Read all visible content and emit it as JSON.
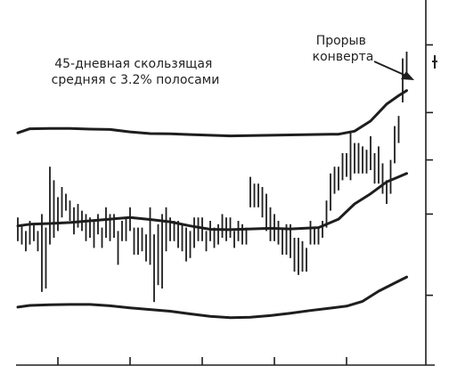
{
  "chart_data": {
    "type": "line",
    "title": "",
    "xlabel": "",
    "ylabel": "",
    "grid": false,
    "legend": "none",
    "colors": {
      "ink": "#1e1e1e",
      "background": "#ffffff"
    },
    "annotations": [
      {
        "name": "indicator-label",
        "lines": [
          "45-дневная скользящая",
          "средняя с 3.2% полосами"
        ]
      },
      {
        "name": "breakout-label",
        "lines": [
          "Прорыв",
          "конверта"
        ]
      }
    ],
    "x_range": [
      0,
      100
    ],
    "y_range": [
      0,
      100
    ],
    "series": [
      {
        "id": "upper-band",
        "x": [
          0,
          3,
          8,
          13,
          18,
          23,
          28,
          33,
          38,
          43,
          48,
          53,
          58,
          63,
          68,
          73,
          78,
          80,
          84,
          88,
          92,
          95,
          97
        ],
        "y": [
          66.0,
          67.2,
          67.3,
          67.3,
          67.1,
          67.0,
          66.3,
          65.8,
          65.7,
          65.5,
          65.3,
          65.1,
          65.2,
          65.3,
          65.4,
          65.5,
          65.6,
          65.6,
          66.5,
          69.5,
          74.5,
          77.0,
          78.5
        ]
      },
      {
        "id": "moving-average",
        "x": [
          0,
          3,
          8,
          13,
          18,
          23,
          28,
          33,
          38,
          43,
          48,
          53,
          58,
          63,
          68,
          73,
          75,
          80,
          84,
          88,
          92,
          95,
          97
        ],
        "y": [
          38.5,
          39.0,
          39.2,
          39.5,
          40.0,
          40.5,
          41.0,
          40.4,
          39.7,
          38.5,
          37.5,
          37.4,
          37.6,
          37.8,
          37.6,
          37.9,
          38.0,
          40.5,
          45.0,
          48.0,
          51.5,
          53.0,
          54.0
        ]
      },
      {
        "id": "lower-band",
        "x": [
          0,
          3,
          8,
          13,
          18,
          23,
          28,
          33,
          38,
          43,
          48,
          53,
          58,
          63,
          68,
          73,
          78,
          82,
          86,
          90,
          94,
          97
        ],
        "y": [
          14.5,
          15.0,
          15.2,
          15.3,
          15.3,
          14.9,
          14.3,
          13.8,
          13.3,
          12.5,
          11.8,
          11.4,
          11.5,
          12.0,
          12.7,
          13.5,
          14.2,
          14.8,
          16.2,
          19.2,
          21.6,
          23.4
        ]
      }
    ],
    "price_bars": {
      "x": [
        0,
        1,
        2,
        3,
        4,
        5,
        6,
        7,
        8,
        9,
        10,
        11,
        12,
        13,
        14,
        15,
        16,
        17,
        18,
        19,
        20,
        21,
        22,
        23,
        24,
        25,
        26,
        27,
        28,
        29,
        30,
        31,
        32,
        33,
        34,
        35,
        36,
        37,
        38,
        39,
        40,
        41,
        42,
        43,
        44,
        45,
        46,
        47,
        48,
        49,
        50,
        51,
        52,
        53,
        54,
        55,
        56,
        57,
        58,
        59,
        60,
        61,
        62,
        63,
        64,
        65,
        66,
        67,
        68,
        69,
        70,
        71,
        72,
        73,
        74,
        75,
        76,
        77,
        78,
        79,
        80,
        81,
        82,
        83,
        84,
        85,
        86,
        87,
        88,
        89,
        90,
        91,
        92,
        93,
        94,
        95,
        96,
        97
      ],
      "high": [
        41,
        39,
        37,
        40,
        39,
        37,
        42,
        38,
        56,
        52,
        47,
        50,
        48,
        46,
        44,
        45,
        43,
        42,
        41,
        40,
        42,
        38,
        44,
        42,
        42,
        37,
        40,
        41,
        44,
        38,
        38,
        38,
        36,
        44,
        36,
        39,
        42,
        44,
        41,
        40,
        40,
        39,
        38,
        37,
        41,
        41,
        41,
        37,
        40,
        38,
        39,
        42,
        41,
        41,
        37,
        40,
        39,
        38,
        53,
        51,
        51,
        50,
        48,
        44,
        42,
        40,
        38,
        39,
        39,
        35,
        35,
        34,
        32,
        40,
        38,
        38,
        40,
        46,
        54,
        56,
        56,
        60,
        60,
        66,
        63,
        63,
        62,
        61,
        65,
        60,
        62,
        57,
        52,
        58,
        68,
        71,
        88,
        90
      ],
      "low": [
        34,
        33,
        31,
        33,
        34,
        31,
        19,
        20,
        33,
        35,
        37,
        41,
        43,
        40,
        36,
        38,
        37,
        34,
        35,
        32,
        36,
        32,
        35,
        34,
        35,
        27,
        34,
        34,
        37,
        30,
        30,
        31,
        28,
        27,
        16,
        21,
        20,
        31,
        34,
        34,
        32,
        31,
        28,
        29,
        32,
        34,
        34,
        31,
        34,
        32,
        33,
        35,
        34,
        35,
        32,
        34,
        33,
        33,
        44,
        44,
        44,
        41,
        37,
        34,
        34,
        33,
        30,
        30,
        29,
        25,
        24,
        25,
        25,
        33,
        33,
        33,
        35,
        38,
        43,
        48,
        49,
        52,
        53,
        52,
        54,
        54,
        54,
        54,
        55,
        51,
        51,
        48,
        45,
        48,
        57,
        63,
        75,
        83
      ]
    },
    "x_ticks": [
      10,
      28,
      46,
      64,
      82
    ],
    "y_ticks": [
      18,
      42,
      58,
      72,
      92
    ]
  }
}
